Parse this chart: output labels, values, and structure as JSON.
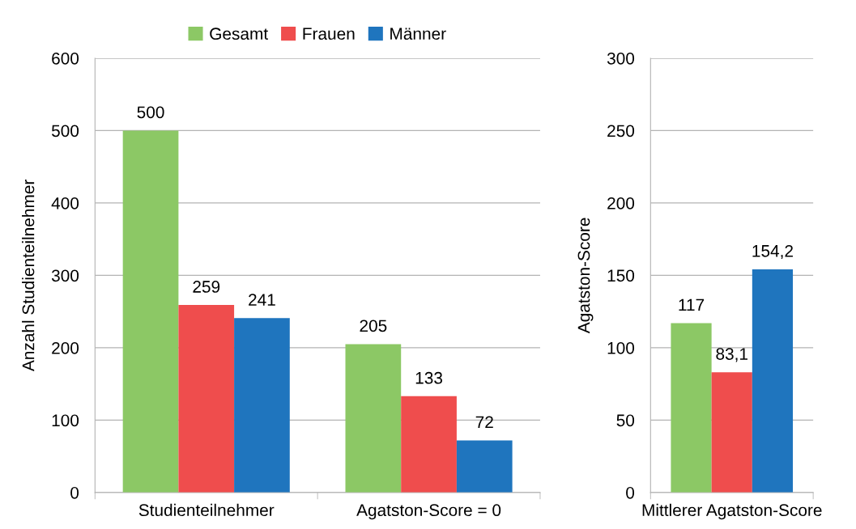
{
  "chart_data": [
    {
      "type": "bar",
      "ylabel": "Anzahl Studienteilnehmer",
      "categories": [
        "Studienteilnehmer",
        "Agatston-Score = 0"
      ],
      "series": [
        {
          "name": "Gesamt",
          "color": "#8cc865",
          "values": [
            500,
            205
          ],
          "value_labels": [
            "500",
            "205"
          ]
        },
        {
          "name": "Frauen",
          "color": "#ef4d4d",
          "values": [
            259,
            133
          ],
          "value_labels": [
            "259",
            "133"
          ]
        },
        {
          "name": "Männer",
          "color": "#1f75be",
          "values": [
            241,
            72
          ],
          "value_labels": [
            "241",
            "72"
          ]
        }
      ],
      "ylim": [
        0,
        600
      ],
      "yticks": [
        0,
        100,
        200,
        300,
        400,
        500,
        600
      ],
      "grid": "y",
      "legend": "top"
    },
    {
      "type": "bar",
      "ylabel": "Agatston-Score",
      "categories": [
        "Mittlerer Agatston-Score"
      ],
      "series": [
        {
          "color": "#8cc865",
          "values": [
            117
          ],
          "value_labels": [
            "117"
          ]
        },
        {
          "color": "#ef4d4d",
          "values": [
            83.1
          ],
          "value_labels": [
            "83,1"
          ]
        },
        {
          "color": "#1f75be",
          "values": [
            154.2
          ],
          "value_labels": [
            "154,2"
          ]
        }
      ],
      "ylim": [
        0,
        300
      ],
      "yticks": [
        0,
        50,
        100,
        150,
        200,
        250,
        300
      ],
      "grid": "y"
    }
  ]
}
